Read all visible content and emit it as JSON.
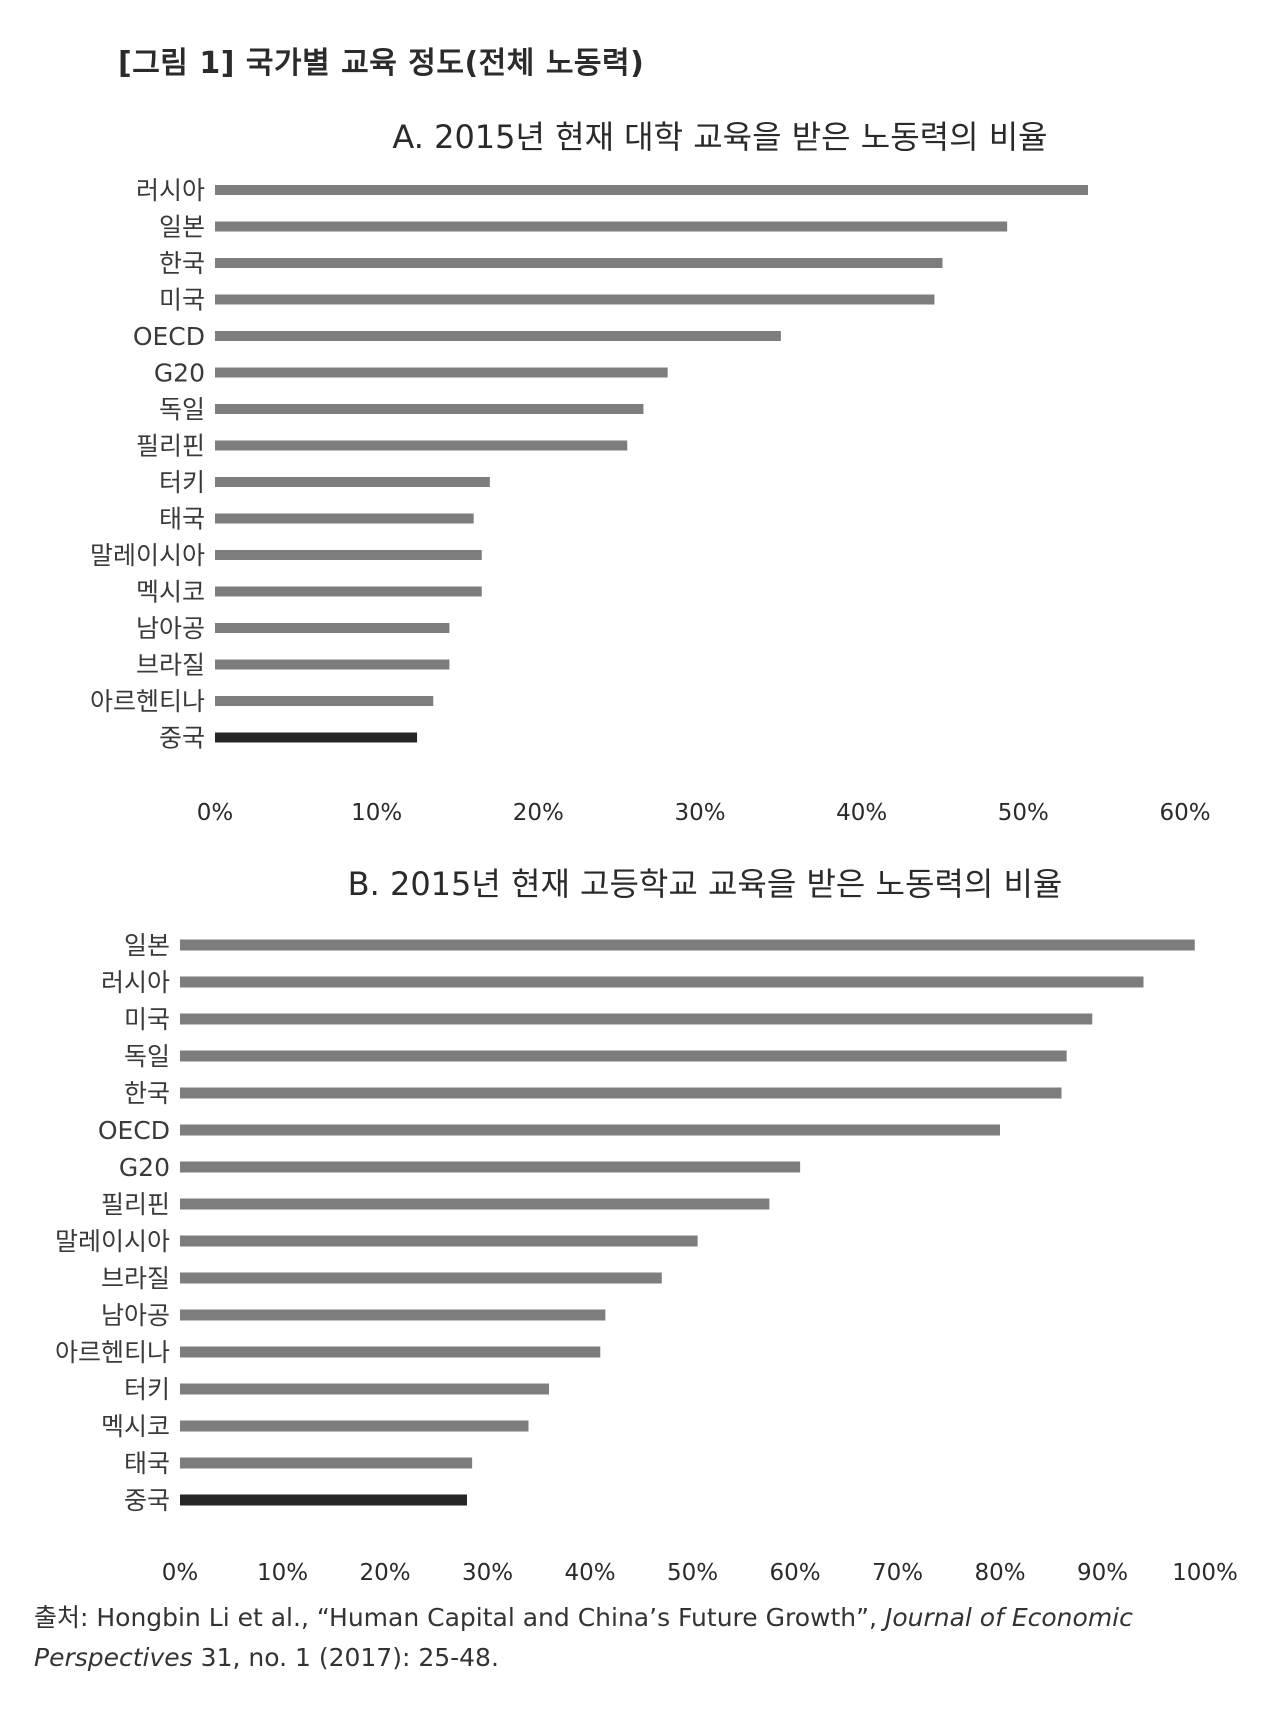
{
  "figure_title": "[그림 1]  국가별 교육 정도(전체 노동력)",
  "chart_data": [
    {
      "type": "bar",
      "orientation": "horizontal",
      "title": "A. 2015년 현재 대학 교육을 받은 노동력의 비율",
      "categories": [
        "러시아",
        "일본",
        "한국",
        "미국",
        "OECD",
        "G20",
        "독일",
        "필리핀",
        "터키",
        "태국",
        "말레이시아",
        "멕시코",
        "남아공",
        "브라질",
        "아르헨티나",
        "중국"
      ],
      "values": [
        54,
        49,
        45,
        44.5,
        35,
        28,
        26.5,
        25.5,
        17,
        16,
        16.5,
        16.5,
        14.5,
        14.5,
        13.5,
        12.5
      ],
      "highlight": "중국",
      "xlim": [
        0,
        60
      ],
      "xticks": [
        "0%",
        "10%",
        "20%",
        "30%",
        "40%",
        "50%",
        "60%"
      ],
      "xlabel": "",
      "ylabel": "",
      "grid": false,
      "colors": {
        "bar": "#7d7d7d",
        "highlight": "#262626"
      }
    },
    {
      "type": "bar",
      "orientation": "horizontal",
      "title": "B. 2015년 현재 고등학교 교육을 받은 노동력의 비율",
      "categories": [
        "일본",
        "러시아",
        "미국",
        "독일",
        "한국",
        "OECD",
        "G20",
        "필리핀",
        "말레이시아",
        "브라질",
        "남아공",
        "아르헨티나",
        "터키",
        "멕시코",
        "태국",
        "중국"
      ],
      "values": [
        99,
        94,
        89,
        86.5,
        86,
        80,
        60.5,
        57.5,
        50.5,
        47,
        41.5,
        41,
        36,
        34,
        28.5,
        28
      ],
      "highlight": "중국",
      "xlim": [
        0,
        100
      ],
      "xticks": [
        "0%",
        "10%",
        "20%",
        "30%",
        "40%",
        "50%",
        "60%",
        "70%",
        "80%",
        "90%",
        "100%"
      ],
      "xlabel": "",
      "ylabel": "",
      "grid": false,
      "colors": {
        "bar": "#7d7d7d",
        "highlight": "#262626"
      }
    }
  ],
  "source": {
    "prefix": "출처: Hongbin Li et al., “Human Capital and China’s Future Growth”, ",
    "journal": "Journal of Economic Perspectives",
    "suffix": " 31, no. 1 (2017): 25-48."
  }
}
